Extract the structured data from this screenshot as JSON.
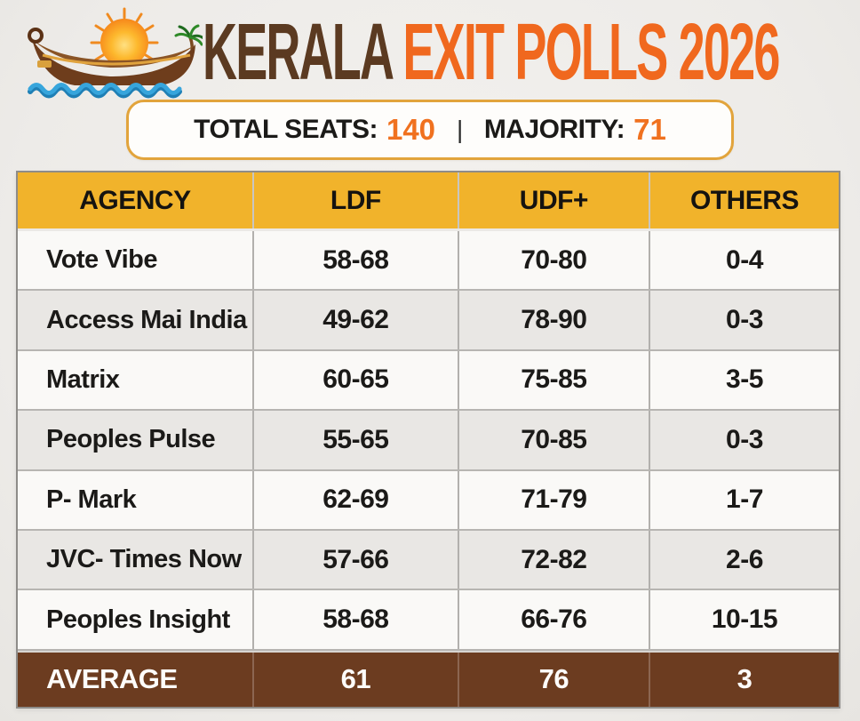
{
  "header": {
    "title_brown": "KERALA ",
    "title_orange": "EXIT POLLS 2026",
    "logo_name": "kerala-snake-boat-sun-palm"
  },
  "summary": {
    "total_seats_label": "TOTAL SEATS:",
    "total_seats_value": "140",
    "separator": "|",
    "majority_label": "MAJORITY:",
    "majority_value": "71"
  },
  "table": {
    "columns": [
      "AGENCY",
      "LDF",
      "UDF+",
      "OTHERS"
    ],
    "rows": [
      {
        "agency": "Vote Vibe",
        "ldf": "58-68",
        "udf": "70-80",
        "others": "0-4"
      },
      {
        "agency": "Access Mai India",
        "ldf": "49-62",
        "udf": "78-90",
        "others": "0-3"
      },
      {
        "agency": "Matrix",
        "ldf": "60-65",
        "udf": "75-85",
        "others": "3-5"
      },
      {
        "agency": "Peoples Pulse",
        "ldf": "55-65",
        "udf": "70-85",
        "others": "0-3"
      },
      {
        "agency": "P- Mark",
        "ldf": "62-69",
        "udf": "71-79",
        "others": "1-7"
      },
      {
        "agency": "JVC- Times Now",
        "ldf": "57-66",
        "udf": "72-82",
        "others": "2-6"
      },
      {
        "agency": "Peoples Insight",
        "ldf": "58-68",
        "udf": "66-76",
        "others": "10-15"
      }
    ],
    "footer": {
      "agency": "AVERAGE",
      "ldf": "61",
      "udf": "76",
      "others": "3"
    }
  },
  "colors": {
    "header_yellow": "#F1B32B",
    "footer_brown": "#6C3C20",
    "title_brown": "#5B3A21",
    "title_orange": "#F0681E",
    "value_orange": "#F0711F",
    "pill_border": "#E2A43C",
    "row_light": "#FAF9F7",
    "row_gray": "#E9E7E4"
  },
  "chart_data": {
    "type": "table",
    "title": "KERALA EXIT POLLS 2026",
    "total_seats": 140,
    "majority": 71,
    "columns": [
      "AGENCY",
      "LDF",
      "UDF+",
      "OTHERS"
    ],
    "rows": [
      [
        "Vote Vibe",
        "58-68",
        "70-80",
        "0-4"
      ],
      [
        "Access Mai India",
        "49-62",
        "78-90",
        "0-3"
      ],
      [
        "Matrix",
        "60-65",
        "75-85",
        "3-5"
      ],
      [
        "Peoples Pulse",
        "55-65",
        "70-85",
        "0-3"
      ],
      [
        "P- Mark",
        "62-69",
        "71-79",
        "1-7"
      ],
      [
        "JVC- Times Now",
        "57-66",
        "72-82",
        "2-6"
      ],
      [
        "Peoples Insight",
        "58-68",
        "66-76",
        "10-15"
      ],
      [
        "AVERAGE",
        "61",
        "76",
        "3"
      ]
    ]
  }
}
